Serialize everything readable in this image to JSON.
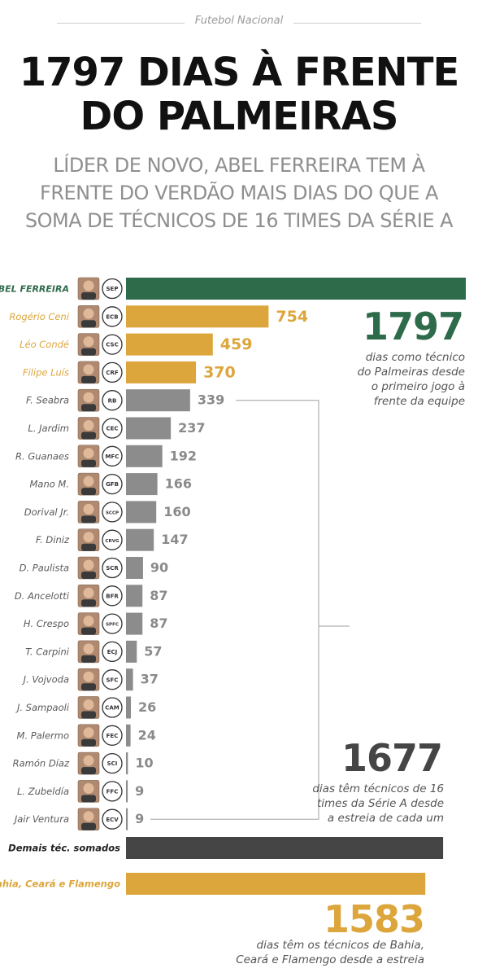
{
  "header": {
    "section": "Futebol Nacional",
    "title_line1": "1797 DIAS À FRENTE",
    "title_line2": "DO PALMEIRAS",
    "subtitle_line1": "LÍDER DE NOVO, ABEL FERREIRA TEM À",
    "subtitle_line2": "FRENTE DO VERDÃO MAIS DIAS DO QUE A",
    "subtitle_line3": "SOMA DE TÉCNICOS DE 16 TIMES DA SÉRIE A"
  },
  "colors": {
    "green": "#2e6b4a",
    "gold": "#dca63c",
    "gray": "#8c8c8c",
    "dark": "#454545",
    "label_gray": "#5a5a5a"
  },
  "chart_data": {
    "type": "bar",
    "orientation": "horizontal",
    "unit": "dias",
    "bars": [
      {
        "label": "ABEL FERREIRA",
        "value": 1797,
        "value_label": "",
        "color": "green",
        "label_style": "bold-green",
        "club_icon": "palmeiras-crest-icon",
        "club_text": "SEP"
      },
      {
        "label": "Rogério Ceni",
        "value": 754,
        "value_label": "754",
        "color": "gold",
        "label_style": "gold",
        "club_icon": "bahia-crest-icon",
        "club_text": "ECB"
      },
      {
        "label": "Léo Condé",
        "value": 459,
        "value_label": "459",
        "color": "gold",
        "label_style": "gold",
        "club_icon": "ceara-crest-icon",
        "club_text": "CSC"
      },
      {
        "label": "Filipe Luís",
        "value": 370,
        "value_label": "370",
        "color": "gold",
        "label_style": "gold",
        "club_icon": "flamengo-crest-icon",
        "club_text": "CRF"
      },
      {
        "label": "F. Seabra",
        "value": 339,
        "value_label": "339",
        "color": "gray",
        "label_style": "gray",
        "club_icon": "bragantino-crest-icon",
        "club_text": "RB"
      },
      {
        "label": "L. Jardim",
        "value": 237,
        "value_label": "237",
        "color": "gray",
        "label_style": "gray",
        "club_icon": "cruzeiro-crest-icon",
        "club_text": "CEC"
      },
      {
        "label": "R. Guanaes",
        "value": 192,
        "value_label": "192",
        "color": "gray",
        "label_style": "gray",
        "club_icon": "mirassol-crest-icon",
        "club_text": "MFC"
      },
      {
        "label": "Mano M.",
        "value": 166,
        "value_label": "166",
        "color": "gray",
        "label_style": "gray",
        "club_icon": "gremio-crest-icon",
        "club_text": "GFB"
      },
      {
        "label": "Dorival Jr.",
        "value": 160,
        "value_label": "160",
        "color": "gray",
        "label_style": "gray",
        "club_icon": "corinthians-crest-icon",
        "club_text": "SCCP"
      },
      {
        "label": "F. Diniz",
        "value": 147,
        "value_label": "147",
        "color": "gray",
        "label_style": "gray",
        "club_icon": "vasco-crest-icon",
        "club_text": "CRVG"
      },
      {
        "label": "D. Paulista",
        "value": 90,
        "value_label": "90",
        "color": "gray",
        "label_style": "gray",
        "club_icon": "sport-crest-icon",
        "club_text": "SCR"
      },
      {
        "label": "D. Ancelotti",
        "value": 87,
        "value_label": "87",
        "color": "gray",
        "label_style": "gray",
        "club_icon": "botafogo-crest-icon",
        "club_text": "BFR"
      },
      {
        "label": "H. Crespo",
        "value": 87,
        "value_label": "87",
        "color": "gray",
        "label_style": "gray",
        "club_icon": "sao-paulo-crest-icon",
        "club_text": "SPFC"
      },
      {
        "label": "T. Carpini",
        "value": 57,
        "value_label": "57",
        "color": "gray",
        "label_style": "gray",
        "club_icon": "juventude-crest-icon",
        "club_text": "ECJ"
      },
      {
        "label": "J. Vojvoda",
        "value": 37,
        "value_label": "37",
        "color": "gray",
        "label_style": "gray",
        "club_icon": "santos-crest-icon",
        "club_text": "SFC"
      },
      {
        "label": "J. Sampaoli",
        "value": 26,
        "value_label": "26",
        "color": "gray",
        "label_style": "gray",
        "club_icon": "atletico-mg-crest-icon",
        "club_text": "CAM"
      },
      {
        "label": "M. Palermo",
        "value": 24,
        "value_label": "24",
        "color": "gray",
        "label_style": "gray",
        "club_icon": "fortaleza-crest-icon",
        "club_text": "FEC"
      },
      {
        "label": "Ramón Díaz",
        "value": 10,
        "value_label": "10",
        "color": "gray",
        "label_style": "gray",
        "club_icon": "internacional-crest-icon",
        "club_text": "SCI"
      },
      {
        "label": "L. Zubeldía",
        "value": 9,
        "value_label": "9",
        "color": "gray",
        "label_style": "gray",
        "club_icon": "fluminense-crest-icon",
        "club_text": "FFC"
      },
      {
        "label": "Jair Ventura",
        "value": 9,
        "value_label": "9",
        "color": "gray",
        "label_style": "gray",
        "club_icon": "vitoria-crest-icon",
        "club_text": "ECV"
      }
    ],
    "totals": [
      {
        "label": "Demais téc. somados",
        "value": 1677,
        "color": "dark",
        "label_style": "bold-dark"
      },
      {
        "label": "Bahia, Ceará e Flamengo",
        "value": 1583,
        "color": "gold",
        "label_style": "bold-gold"
      }
    ],
    "annotations": [
      {
        "value": "1797",
        "text_lines": [
          "dias como técnico",
          "do Palmeiras desde",
          "o primeiro jogo à",
          "frente da equipe"
        ],
        "color": "green"
      },
      {
        "value": "1677",
        "text_lines": [
          "dias têm técnicos de 16",
          "times da Série A desde",
          "a estreia de cada um"
        ],
        "color": "dark"
      },
      {
        "value": "1583",
        "text_lines": [
          "dias têm os técnicos de Bahia,",
          "Ceará e Flamengo desde a estreia"
        ],
        "color": "gold"
      }
    ]
  }
}
